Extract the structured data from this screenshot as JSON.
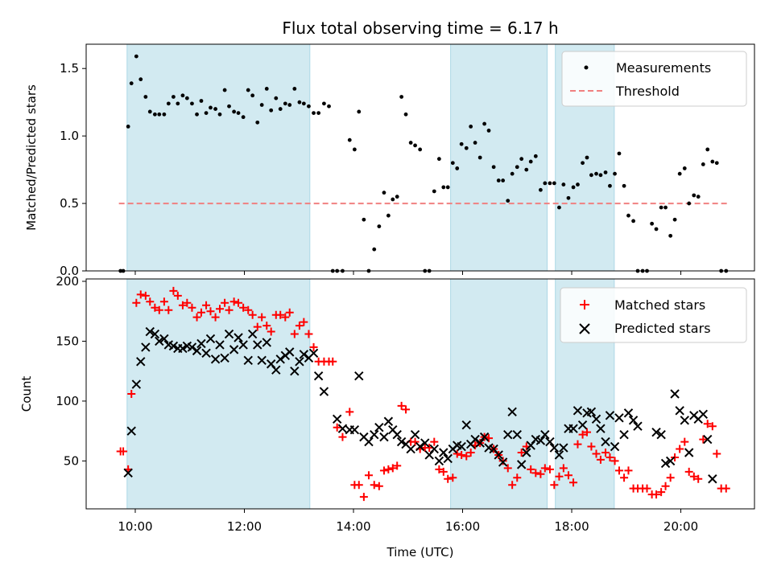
{
  "chart_data": {
    "type": "scatter",
    "title": "Flux total observing time = 6.17 h",
    "xlabel": "Time (UTC)",
    "x_ticks": [
      {
        "v": 10,
        "label": "10:00"
      },
      {
        "v": 12,
        "label": "12:00"
      },
      {
        "v": 14,
        "label": "14:00"
      },
      {
        "v": 16,
        "label": "16:00"
      },
      {
        "v": 18,
        "label": "18:00"
      },
      {
        "v": 20,
        "label": "20:00"
      }
    ],
    "xlim": [
      9.1,
      21.35
    ],
    "shaded_intervals": [
      [
        9.85,
        13.2
      ],
      [
        15.78,
        17.55
      ],
      [
        17.7,
        18.78
      ]
    ],
    "shade_color": "#add8e6",
    "panels": [
      {
        "ylabel": "Matched/Predicted stars",
        "ylim": [
          0,
          1.68
        ],
        "y_ticks": [
          {
            "v": 0,
            "label": "0.0"
          },
          {
            "v": 0.5,
            "label": "0.5"
          },
          {
            "v": 1.0,
            "label": "1.0"
          },
          {
            "v": 1.5,
            "label": "1.5"
          }
        ],
        "threshold": {
          "name": "Threshold",
          "value": 0.5,
          "x_range": [
            9.7,
            20.85
          ],
          "color": "#f08080"
        },
        "legend": {
          "position": "top-right",
          "items": [
            "Measurements",
            "Threshold"
          ]
        },
        "series": [
          {
            "name": "Measurements",
            "marker": "dot",
            "color": "#000000",
            "x": [
              9.73,
              9.78,
              9.87,
              9.93,
              10.02,
              10.1,
              10.19,
              10.27,
              10.36,
              10.44,
              10.53,
              10.61,
              10.7,
              10.78,
              10.87,
              10.95,
              11.04,
              11.13,
              11.21,
              11.3,
              11.38,
              11.47,
              11.55,
              11.64,
              11.72,
              11.81,
              11.89,
              11.98,
              12.07,
              12.15,
              12.24,
              12.32,
              12.41,
              12.49,
              12.58,
              12.66,
              12.75,
              12.83,
              12.92,
              13.01,
              13.09,
              13.18,
              13.27,
              13.36,
              13.46,
              13.55,
              13.62,
              13.7,
              13.8,
              13.93,
              14.02,
              14.1,
              14.19,
              14.28,
              14.38,
              14.47,
              14.56,
              14.64,
              14.72,
              14.8,
              14.88,
              14.96,
              15.05,
              15.13,
              15.22,
              15.31,
              15.39,
              15.48,
              15.57,
              15.65,
              15.73,
              15.82,
              15.9,
              15.98,
              16.07,
              16.15,
              16.23,
              16.32,
              16.4,
              16.48,
              16.57,
              16.66,
              16.74,
              16.83,
              16.91,
              17.0,
              17.08,
              17.17,
              17.25,
              17.34,
              17.43,
              17.51,
              17.6,
              17.68,
              17.77,
              17.85,
              17.94,
              18.03,
              18.11,
              18.2,
              18.28,
              18.36,
              18.45,
              18.53,
              18.62,
              18.7,
              18.79,
              18.87,
              18.96,
              19.04,
              19.13,
              19.21,
              19.3,
              19.38,
              19.47,
              19.55,
              19.64,
              19.72,
              19.81,
              19.89,
              19.98,
              20.07,
              20.15,
              20.24,
              20.32,
              20.41,
              20.49,
              20.58,
              20.66,
              20.74,
              20.83
            ],
            "y": [
              0,
              0,
              1.07,
              1.39,
              1.59,
              1.42,
              1.29,
              1.18,
              1.16,
              1.16,
              1.16,
              1.24,
              1.29,
              1.24,
              1.3,
              1.28,
              1.24,
              1.16,
              1.26,
              1.17,
              1.21,
              1.2,
              1.16,
              1.34,
              1.22,
              1.18,
              1.17,
              1.14,
              1.34,
              1.3,
              1.1,
              1.23,
              1.35,
              1.19,
              1.28,
              1.2,
              1.24,
              1.23,
              1.35,
              1.25,
              1.24,
              1.22,
              1.17,
              1.17,
              1.24,
              1.22,
              0,
              0,
              0,
              0.97,
              0.9,
              1.18,
              0.38,
              0,
              0.16,
              0.33,
              0.58,
              0.41,
              0.53,
              0.55,
              1.29,
              1.16,
              0.95,
              0.93,
              0.9,
              0,
              0,
              0.59,
              0.83,
              0.62,
              0.62,
              0.8,
              0.76,
              0.94,
              0.91,
              1.07,
              0.95,
              0.84,
              1.09,
              1.04,
              0.77,
              0.67,
              0.67,
              0.52,
              0.72,
              0.77,
              0.83,
              0.75,
              0.81,
              0.85,
              0.6,
              0.65,
              0.65,
              0.65,
              0.47,
              0.64,
              0.54,
              0.62,
              0.64,
              0.8,
              0.84,
              0.71,
              0.72,
              0.71,
              0.73,
              0.63,
              0.72,
              0.87,
              0.63,
              0.41,
              0.37,
              0,
              0,
              0,
              0.35,
              0.31,
              0.47,
              0.47,
              0.26,
              0.38,
              0.72,
              0.76,
              0.5,
              0.56,
              0.55,
              0.79,
              0.9,
              0.81,
              0.8,
              0,
              0
            ]
          }
        ]
      },
      {
        "ylabel": "Count",
        "ylim": [
          10,
          202
        ],
        "y_ticks": [
          {
            "v": 50,
            "label": "50"
          },
          {
            "v": 100,
            "label": "100"
          },
          {
            "v": 150,
            "label": "150"
          },
          {
            "v": 200,
            "label": "200"
          }
        ],
        "legend": {
          "position": "top-right",
          "items": [
            "Matched stars",
            "Predicted stars"
          ]
        },
        "series": [
          {
            "name": "Matched stars",
            "marker": "plus",
            "color": "#ff0000",
            "x": [
              9.73,
              9.78,
              9.87,
              9.93,
              10.02,
              10.1,
              10.19,
              10.27,
              10.36,
              10.44,
              10.53,
              10.61,
              10.7,
              10.78,
              10.87,
              10.95,
              11.04,
              11.13,
              11.21,
              11.3,
              11.38,
              11.47,
              11.55,
              11.64,
              11.72,
              11.81,
              11.89,
              11.98,
              12.07,
              12.15,
              12.24,
              12.32,
              12.41,
              12.49,
              12.58,
              12.66,
              12.75,
              12.83,
              12.92,
              13.01,
              13.09,
              13.18,
              13.27,
              13.36,
              13.46,
              13.55,
              13.62,
              13.7,
              13.8,
              13.93,
              14.02,
              14.1,
              14.19,
              14.28,
              14.38,
              14.47,
              14.56,
              14.64,
              14.72,
              14.8,
              14.88,
              14.96,
              15.05,
              15.13,
              15.22,
              15.31,
              15.39,
              15.48,
              15.57,
              15.65,
              15.73,
              15.82,
              15.9,
              15.98,
              16.07,
              16.15,
              16.23,
              16.32,
              16.4,
              16.48,
              16.57,
              16.66,
              16.74,
              16.83,
              16.91,
              17.0,
              17.08,
              17.17,
              17.25,
              17.34,
              17.43,
              17.51,
              17.6,
              17.68,
              17.77,
              17.85,
              17.94,
              18.03,
              18.11,
              18.2,
              18.28,
              18.36,
              18.45,
              18.53,
              18.62,
              18.7,
              18.79,
              18.87,
              18.96,
              19.04,
              19.13,
              19.21,
              19.3,
              19.38,
              19.47,
              19.55,
              19.64,
              19.72,
              19.81,
              19.89,
              19.98,
              20.07,
              20.15,
              20.24,
              20.32,
              20.41,
              20.49,
              20.58,
              20.66,
              20.74,
              20.83
            ],
            "y": [
              58,
              58,
              43,
              106,
              182,
              189,
              188,
              183,
              178,
              176,
              183,
              176,
              192,
              188,
              180,
              182,
              178,
              170,
              174,
              180,
              175,
              170,
              177,
              182,
              176,
              183,
              182,
              178,
              176,
              172,
              162,
              170,
              163,
              158,
              172,
              172,
              170,
              174,
              156,
              163,
              166,
              156,
              145,
              133,
              133,
              133,
              133,
              78,
              70,
              91,
              30,
              30,
              20,
              38,
              30,
              29,
              42,
              43,
              44,
              46,
              96,
              93,
              66,
              66,
              60,
              61,
              61,
              66,
              43,
              41,
              35,
              36,
              56,
              55,
              54,
              57,
              63,
              65,
              70,
              69,
              60,
              55,
              50,
              44,
              30,
              36,
              57,
              62,
              43,
              40,
              39,
              44,
              43,
              30,
              37,
              44,
              38,
              32,
              64,
              72,
              74,
              62,
              56,
              51,
              57,
              53,
              50,
              42,
              36,
              42,
              27,
              27,
              27,
              27,
              22,
              22,
              24,
              29,
              36,
              53,
              60,
              66,
              41,
              37,
              35,
              68,
              81,
              79,
              56,
              27,
              27
            ]
          },
          {
            "name": "Predicted stars",
            "marker": "cross",
            "color": "#000000",
            "x": [
              9.73,
              9.78,
              9.87,
              9.93,
              10.02,
              10.1,
              10.19,
              10.27,
              10.36,
              10.44,
              10.53,
              10.61,
              10.7,
              10.78,
              10.87,
              10.95,
              11.04,
              11.13,
              11.21,
              11.3,
              11.38,
              11.47,
              11.55,
              11.64,
              11.72,
              11.81,
              11.89,
              11.98,
              12.07,
              12.15,
              12.24,
              12.32,
              12.41,
              12.49,
              12.58,
              12.66,
              12.75,
              12.83,
              12.92,
              13.01,
              13.09,
              13.18,
              13.27,
              13.36,
              13.46,
              13.55,
              13.62,
              13.7,
              13.8,
              13.93,
              14.02,
              14.1,
              14.19,
              14.28,
              14.38,
              14.47,
              14.56,
              14.64,
              14.72,
              14.8,
              14.88,
              14.96,
              15.05,
              15.13,
              15.22,
              15.31,
              15.39,
              15.48,
              15.57,
              15.65,
              15.73,
              15.82,
              15.9,
              15.98,
              16.07,
              16.15,
              16.23,
              16.32,
              16.4,
              16.48,
              16.57,
              16.66,
              16.74,
              16.83,
              16.91,
              17.0,
              17.08,
              17.17,
              17.25,
              17.34,
              17.43,
              17.51,
              17.6,
              17.68,
              17.77,
              17.85,
              17.94,
              18.03,
              18.11,
              18.2,
              18.28,
              18.36,
              18.45,
              18.53,
              18.62,
              18.7,
              18.79,
              18.87,
              18.96,
              19.04,
              19.13,
              19.21,
              19.3,
              19.38,
              19.47,
              19.55,
              19.64,
              19.72,
              19.81,
              19.89,
              19.98,
              20.07,
              20.15,
              20.24,
              20.32,
              20.41,
              20.49,
              20.58,
              20.66,
              20.74,
              20.83
            ],
            "y": [
              null,
              null,
              40,
              75,
              114,
              133,
              145,
              158,
              156,
              150,
              152,
              147,
              146,
              144,
              144,
              146,
              145,
              142,
              148,
              140,
              152,
              135,
              147,
              136,
              156,
              143,
              153,
              147,
              134,
              156,
              147,
              134,
              149,
              131,
              126,
              135,
              138,
              141,
              125,
              133,
              139,
              136,
              140,
              121,
              108,
              null,
              null,
              85,
              77,
              76,
              76,
              121,
              70,
              66,
              72,
              78,
              70,
              83,
              76,
              72,
              66,
              64,
              60,
              72,
              62,
              65,
              55,
              60,
              50,
              57,
              52,
              60,
              63,
              62,
              80,
              64,
              68,
              65,
              70,
              61,
              60,
              55,
              49,
              72,
              91,
              72,
              47,
              57,
              63,
              68,
              67,
              72,
              66,
              61,
              55,
              61,
              77,
              77,
              92,
              80,
              90,
              91,
              85,
              77,
              66,
              88,
              62,
              86,
              72,
              90,
              84,
              79,
              null,
              null,
              null,
              74,
              72,
              48,
              50,
              106,
              92,
              84,
              57,
              88,
              85,
              89,
              68,
              35,
              null,
              null,
              null
            ]
          }
        ]
      }
    ]
  }
}
